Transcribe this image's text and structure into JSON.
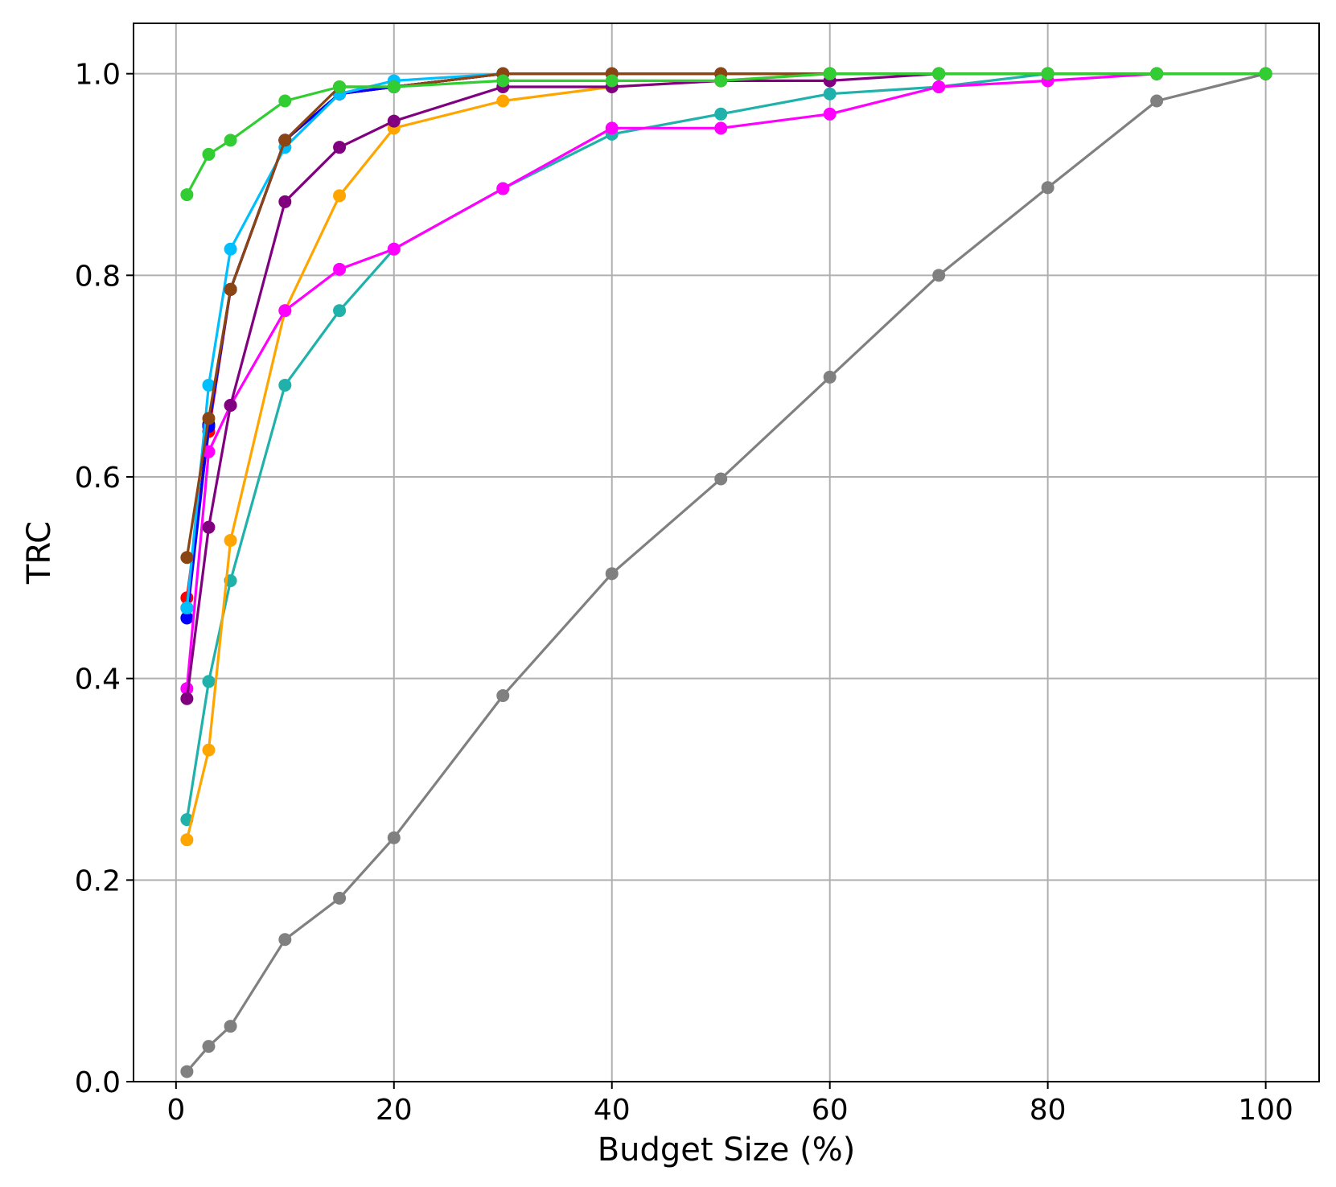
{
  "chart_data": {
    "type": "line",
    "title": "",
    "xlabel": "Budget Size (%)",
    "ylabel": "TRC",
    "xlim": [
      -3.9,
      104.9
    ],
    "ylim": [
      0.0,
      1.05
    ],
    "grid": true,
    "x_ticks": [
      0,
      20,
      40,
      60,
      80,
      100
    ],
    "y_ticks": [
      0.0,
      0.2,
      0.4,
      0.6,
      0.8,
      1.0
    ],
    "x_tick_labels": [
      "0",
      "20",
      "40",
      "60",
      "80",
      "100"
    ],
    "y_tick_labels": [
      "0.0",
      "0.2",
      "0.4",
      "0.6",
      "0.8",
      "1.0"
    ],
    "series": [
      {
        "color": "#808080",
        "x": [
          1,
          3,
          5,
          10,
          15,
          20,
          30,
          40,
          50,
          60,
          70,
          80,
          90,
          100
        ],
        "y": [
          0.01,
          0.035,
          0.055,
          0.141,
          0.182,
          0.242,
          0.383,
          0.504,
          0.598,
          0.699,
          0.8,
          0.887,
          0.973,
          1.0
        ]
      },
      {
        "color": "#000000",
        "x": [
          1,
          3,
          5,
          10,
          15,
          20,
          30,
          40,
          50,
          60,
          70,
          80,
          90,
          100
        ],
        "y": [
          0.47,
          0.652,
          0.786,
          0.934,
          0.98,
          0.987,
          1.0,
          1.0,
          1.0,
          1.0,
          1.0,
          1.0,
          1.0,
          1.0
        ]
      },
      {
        "color": "#ff0000",
        "x": [
          1,
          3,
          5,
          10,
          15,
          20,
          30,
          40,
          50,
          60,
          70,
          80,
          90,
          100
        ],
        "y": [
          0.48,
          0.645,
          0.786,
          0.934,
          0.98,
          0.987,
          1.0,
          1.0,
          1.0,
          1.0,
          1.0,
          1.0,
          1.0,
          1.0
        ]
      },
      {
        "color": "#0000ff",
        "x": [
          1,
          3,
          5,
          10,
          15,
          20,
          30,
          40,
          50,
          60,
          70,
          80,
          90,
          100
        ],
        "y": [
          0.46,
          0.65,
          0.786,
          0.934,
          0.98,
          0.987,
          1.0,
          1.0,
          1.0,
          1.0,
          1.0,
          1.0,
          1.0,
          1.0
        ]
      },
      {
        "color": "#20b2aa",
        "x": [
          1,
          3,
          5,
          10,
          15,
          20,
          30,
          40,
          50,
          60,
          70,
          80,
          90,
          100
        ],
        "y": [
          0.26,
          0.397,
          0.497,
          0.691,
          0.765,
          0.826,
          0.886,
          0.94,
          0.96,
          0.98,
          0.987,
          1.0,
          1.0,
          1.0
        ]
      },
      {
        "color": "#ffa500",
        "x": [
          1,
          3,
          5,
          10,
          15,
          20,
          30,
          40,
          50,
          60,
          70,
          80,
          90,
          100
        ],
        "y": [
          0.24,
          0.329,
          0.537,
          0.765,
          0.879,
          0.946,
          0.973,
          0.987,
          0.993,
          1.0,
          1.0,
          1.0,
          1.0,
          1.0
        ]
      },
      {
        "color": "#ff00ff",
        "x": [
          1,
          3,
          5,
          10,
          15,
          20,
          30,
          40,
          50,
          60,
          70,
          80,
          90,
          100
        ],
        "y": [
          0.39,
          0.625,
          0.671,
          0.765,
          0.806,
          0.826,
          0.886,
          0.946,
          0.946,
          0.96,
          0.987,
          0.993,
          1.0,
          1.0
        ]
      },
      {
        "color": "#800080",
        "x": [
          1,
          3,
          5,
          10,
          15,
          20,
          30,
          40,
          50,
          60,
          70,
          80,
          90,
          100
        ],
        "y": [
          0.38,
          0.55,
          0.671,
          0.873,
          0.927,
          0.953,
          0.987,
          0.987,
          0.993,
          0.993,
          1.0,
          1.0,
          1.0,
          1.0
        ]
      },
      {
        "color": "#00bfff",
        "x": [
          1,
          3,
          5,
          10,
          15,
          20,
          30,
          40,
          50,
          60,
          70,
          80,
          90,
          100
        ],
        "y": [
          0.47,
          0.691,
          0.826,
          0.927,
          0.98,
          0.993,
          1.0,
          1.0,
          1.0,
          1.0,
          1.0,
          1.0,
          1.0,
          1.0
        ]
      },
      {
        "color": "#8b4513",
        "x": [
          1,
          3,
          5,
          10,
          15,
          20,
          30,
          40,
          50,
          60,
          70,
          80,
          90,
          100
        ],
        "y": [
          0.52,
          0.658,
          0.786,
          0.934,
          0.987,
          0.987,
          1.0,
          1.0,
          1.0,
          1.0,
          1.0,
          1.0,
          1.0,
          1.0
        ]
      },
      {
        "color": "#32cd32",
        "x": [
          1,
          3,
          5,
          10,
          15,
          20,
          30,
          40,
          50,
          60,
          70,
          80,
          90,
          100
        ],
        "y": [
          0.88,
          0.92,
          0.934,
          0.973,
          0.987,
          0.987,
          0.993,
          0.993,
          0.993,
          1.0,
          1.0,
          1.0,
          1.0,
          1.0
        ]
      }
    ]
  }
}
